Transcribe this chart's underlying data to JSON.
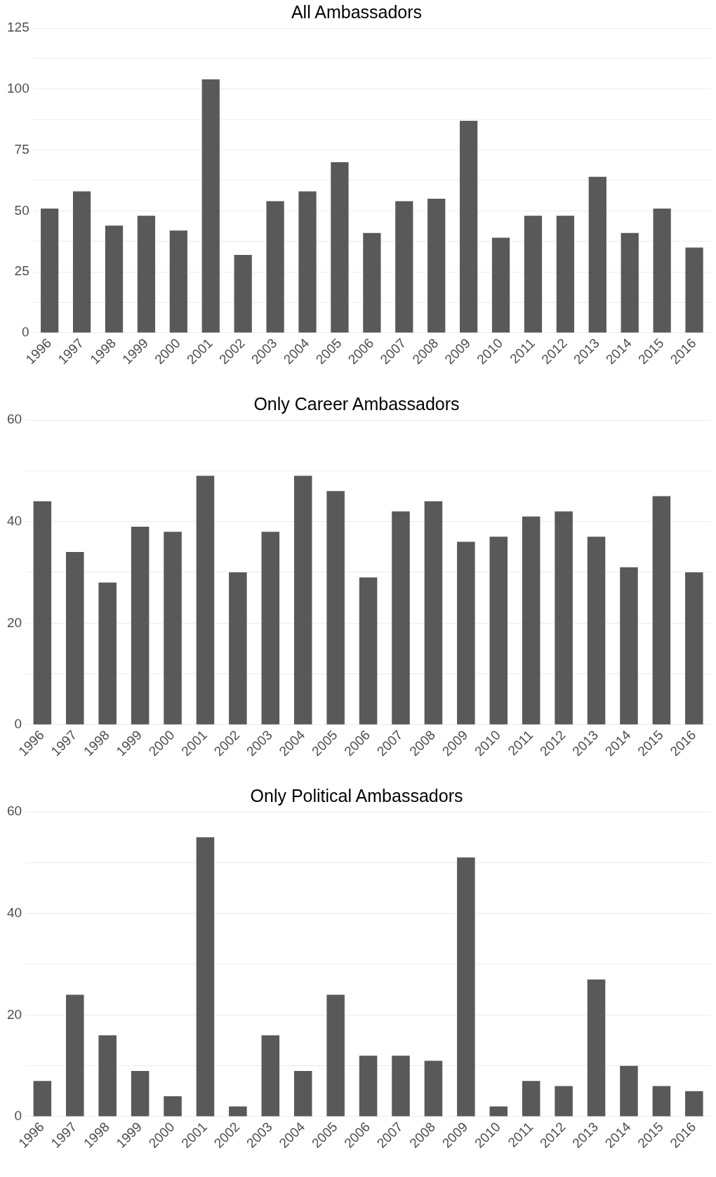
{
  "chart_data": [
    {
      "type": "bar",
      "title": "All Ambassadors",
      "categories": [
        "1996",
        "1997",
        "1998",
        "1999",
        "2000",
        "2001",
        "2002",
        "2003",
        "2004",
        "2005",
        "2006",
        "2007",
        "2008",
        "2009",
        "2010",
        "2011",
        "2012",
        "2013",
        "2014",
        "2015",
        "2016"
      ],
      "values": [
        51,
        58,
        44,
        48,
        42,
        104,
        32,
        54,
        58,
        70,
        41,
        54,
        55,
        87,
        39,
        48,
        48,
        64,
        41,
        51,
        35
      ],
      "color": "#595959",
      "ylim": [
        0,
        125
      ],
      "yticks": [
        0,
        {
          "value": 12.5,
          "label": null
        },
        25,
        {
          "value": 37.5,
          "label": null
        },
        50,
        {
          "value": 62.5,
          "label": null
        },
        75,
        {
          "value": 87.5,
          "label": null
        },
        100,
        {
          "value": 112.5,
          "label": null
        },
        125
      ],
      "grid": "y"
    },
    {
      "type": "bar",
      "title": "Only Career Ambassadors",
      "categories": [
        "1996",
        "1997",
        "1998",
        "1999",
        "2000",
        "2001",
        "2002",
        "2003",
        "2004",
        "2005",
        "2006",
        "2007",
        "2008",
        "2009",
        "2010",
        "2011",
        "2012",
        "2013",
        "2014",
        "2015",
        "2016"
      ],
      "values": [
        44,
        34,
        28,
        39,
        38,
        49,
        30,
        38,
        49,
        46,
        29,
        42,
        44,
        36,
        37,
        41,
        42,
        37,
        31,
        45,
        30
      ],
      "color": "#595959",
      "ylim": [
        0,
        60
      ],
      "yticks": [
        0,
        {
          "value": 10,
          "label": null
        },
        20,
        {
          "value": 30,
          "label": null
        },
        40,
        {
          "value": 50,
          "label": null
        },
        60
      ],
      "grid": "y"
    },
    {
      "type": "bar",
      "title": "Only Political Ambassadors",
      "categories": [
        "1996",
        "1997",
        "1998",
        "1999",
        "2000",
        "2001",
        "2002",
        "2003",
        "2004",
        "2005",
        "2006",
        "2007",
        "2008",
        "2009",
        "2010",
        "2011",
        "2012",
        "2013",
        "2014",
        "2015",
        "2016"
      ],
      "values": [
        7,
        24,
        16,
        9,
        4,
        55,
        2,
        16,
        9,
        24,
        12,
        12,
        11,
        51,
        2,
        7,
        6,
        27,
        10,
        6,
        5
      ],
      "color": "#595959",
      "ylim": [
        0,
        60
      ],
      "yticks": [
        0,
        {
          "value": 10,
          "label": null
        },
        20,
        {
          "value": 30,
          "label": null
        },
        40,
        {
          "value": 50,
          "label": null
        },
        60
      ],
      "grid": "y"
    }
  ]
}
